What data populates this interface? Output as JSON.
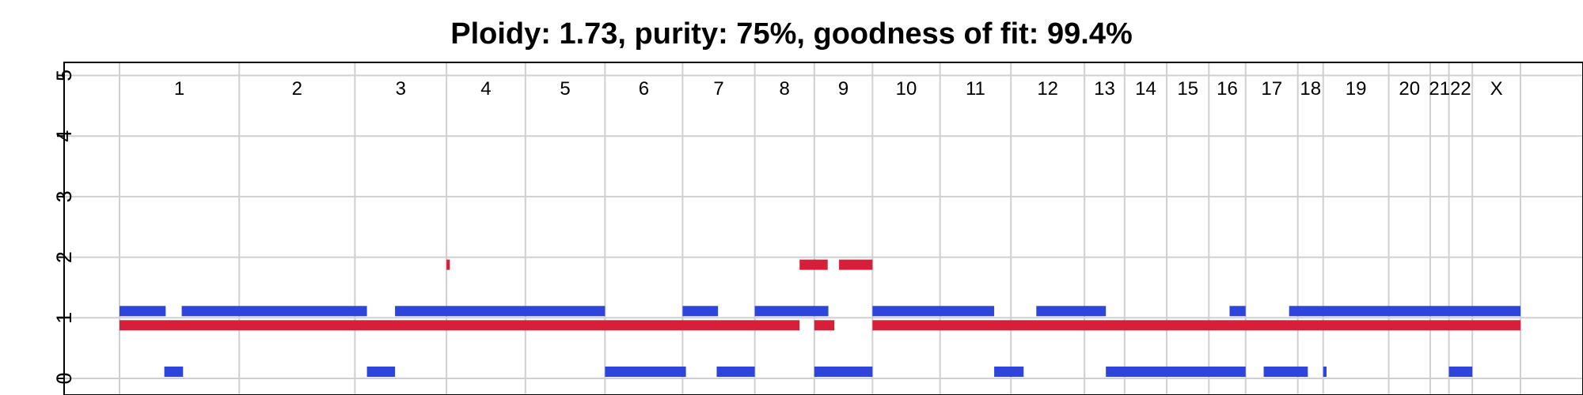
{
  "chart_data": {
    "type": "copy-number-segments",
    "title": "Ploidy: 1.73, purity: 75%, goodness of fit: 99.4%",
    "xlabel": "",
    "ylabel": "",
    "ylim": [
      0,
      5
    ],
    "yticks": [
      "0",
      "1",
      "2",
      "3",
      "4",
      "5"
    ],
    "grid": true,
    "colors": {
      "major": "#d81f3a",
      "minor": "#2e45dc"
    },
    "chromosomes": [
      "1",
      "2",
      "3",
      "4",
      "5",
      "6",
      "7",
      "8",
      "9",
      "10",
      "11",
      "12",
      "13",
      "14",
      "15",
      "16",
      "17",
      "18",
      "19",
      "20",
      "21",
      "22",
      "X"
    ],
    "chromosome_boundaries": [
      0,
      17.9,
      35.2,
      48.9,
      60.7,
      72.6,
      84.2,
      95.0,
      103.9,
      112.6,
      122.7,
      133.3,
      144.3,
      150.3,
      156.6,
      162.9,
      168.4,
      176.2,
      180.0,
      189.8,
      196.0,
      198.8,
      202.3,
      209.5
    ],
    "series": [
      {
        "name": "",
        "role": "major",
        "segments": [
          [
            0,
            101.7,
            1
          ],
          [
            103.9,
            106.9,
            1
          ],
          [
            112.6,
            209.5,
            1
          ],
          [
            48.9,
            49.4,
            2
          ],
          [
            101.7,
            105.9,
            2
          ],
          [
            107.6,
            112.6,
            2
          ]
        ]
      },
      {
        "name": "",
        "role": "minor",
        "segments": [
          [
            0,
            6.9,
            1
          ],
          [
            9.3,
            37.0,
            1
          ],
          [
            41.2,
            72.6,
            1
          ],
          [
            84.2,
            89.5,
            1
          ],
          [
            95.0,
            106.0,
            1
          ],
          [
            112.6,
            130.8,
            1
          ],
          [
            137.1,
            147.5,
            1
          ],
          [
            166.0,
            168.4,
            1
          ],
          [
            174.9,
            209.5,
            1
          ],
          [
            6.7,
            9.5,
            0
          ],
          [
            37.0,
            41.2,
            0
          ],
          [
            72.6,
            84.7,
            0
          ],
          [
            89.3,
            95.0,
            0
          ],
          [
            103.9,
            112.6,
            0
          ],
          [
            130.8,
            135.2,
            0
          ],
          [
            147.5,
            168.4,
            0
          ],
          [
            171.1,
            177.7,
            0
          ],
          [
            180.0,
            180.5,
            0
          ],
          [
            198.8,
            202.3,
            0
          ]
        ]
      }
    ]
  }
}
